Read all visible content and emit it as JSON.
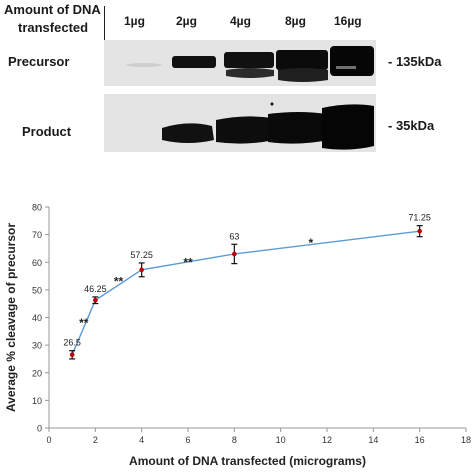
{
  "blot": {
    "header_line1": "Amount of DNA",
    "header_line2": "transfected",
    "lanes": [
      "1µg",
      "2µg",
      "4µg",
      "8µg",
      "16µg"
    ],
    "rows": [
      {
        "label": "Precursor",
        "marker": "- 135kDa"
      },
      {
        "label": "Product",
        "marker": "- 35kDa"
      }
    ]
  },
  "chart_data": {
    "type": "line",
    "xlabel": "Amount of DNA transfected (micrograms)",
    "ylabel": "Average % cleavage of precursor",
    "xlim": [
      0,
      18
    ],
    "ylim": [
      0,
      80
    ],
    "xticks": [
      0,
      2,
      4,
      6,
      8,
      10,
      12,
      14,
      16,
      18
    ],
    "yticks": [
      0,
      10,
      20,
      30,
      40,
      50,
      60,
      70,
      80
    ],
    "grid": false,
    "series": [
      {
        "x": [
          1,
          2,
          4,
          8,
          16
        ],
        "y": [
          26.5,
          46.25,
          57.25,
          63,
          71.25
        ],
        "error": [
          1.5,
          1.2,
          2.5,
          3.5,
          2
        ],
        "data_labels": [
          "26.5",
          "46.25",
          "57.25",
          "63",
          "71.25"
        ]
      }
    ],
    "annotations": [
      {
        "text": "**",
        "x": 1.5,
        "y": 38
      },
      {
        "text": "**",
        "x": 3.0,
        "y": 53
      },
      {
        "text": "**",
        "x": 6.0,
        "y": 60
      },
      {
        "text": "*",
        "x": 11.3,
        "y": 67
      }
    ],
    "line_color": "#5b9bd5",
    "marker_color": "#c00000"
  }
}
